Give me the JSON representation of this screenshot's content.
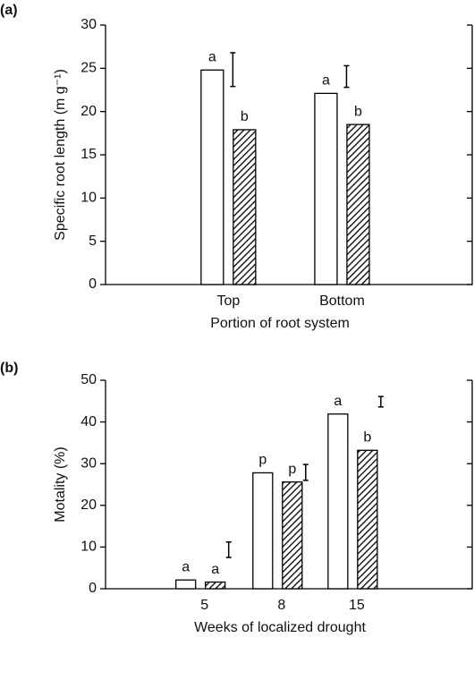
{
  "chart_data": [
    {
      "type": "bar",
      "panel_label": "(a)",
      "ylabel": "Specific root length (m g⁻¹)",
      "xlabel": "Portion of root system",
      "categories": [
        "Top",
        "Bottom"
      ],
      "series": [
        {
          "color": "#000000",
          "pattern": "none",
          "values": [
            24.8,
            22.1
          ],
          "letters": [
            "a",
            "a"
          ]
        },
        {
          "color": "#000000",
          "pattern": "diagonal",
          "values": [
            17.9,
            18.5
          ],
          "letters": [
            "b",
            "b"
          ]
        }
      ],
      "error_bars": {
        "lows": [
          22.9,
          22.8
        ],
        "highs": [
          26.8,
          25.3
        ]
      },
      "ylim": [
        0,
        30
      ],
      "yticks": [
        0,
        5,
        10,
        15,
        20,
        25,
        30
      ]
    },
    {
      "type": "bar",
      "panel_label": "(b)",
      "ylabel": "Motality (%)",
      "xlabel": "Weeks of localized drought",
      "categories": [
        "5",
        "8",
        "15"
      ],
      "series": [
        {
          "color": "#000000",
          "pattern": "none",
          "values": [
            2.1,
            27.8,
            41.9
          ],
          "letters": [
            "a",
            "p",
            "a"
          ]
        },
        {
          "color": "#000000",
          "pattern": "diagonal",
          "values": [
            1.6,
            25.6,
            33.2
          ],
          "letters": [
            "a",
            "p",
            "b"
          ]
        }
      ],
      "error_bars": {
        "lows": [
          7.5,
          26.0,
          43.6
        ],
        "highs": [
          11.2,
          29.8,
          46.1
        ]
      },
      "ylim": [
        0,
        50
      ],
      "yticks": [
        0,
        10,
        20,
        30,
        40,
        50
      ]
    }
  ]
}
